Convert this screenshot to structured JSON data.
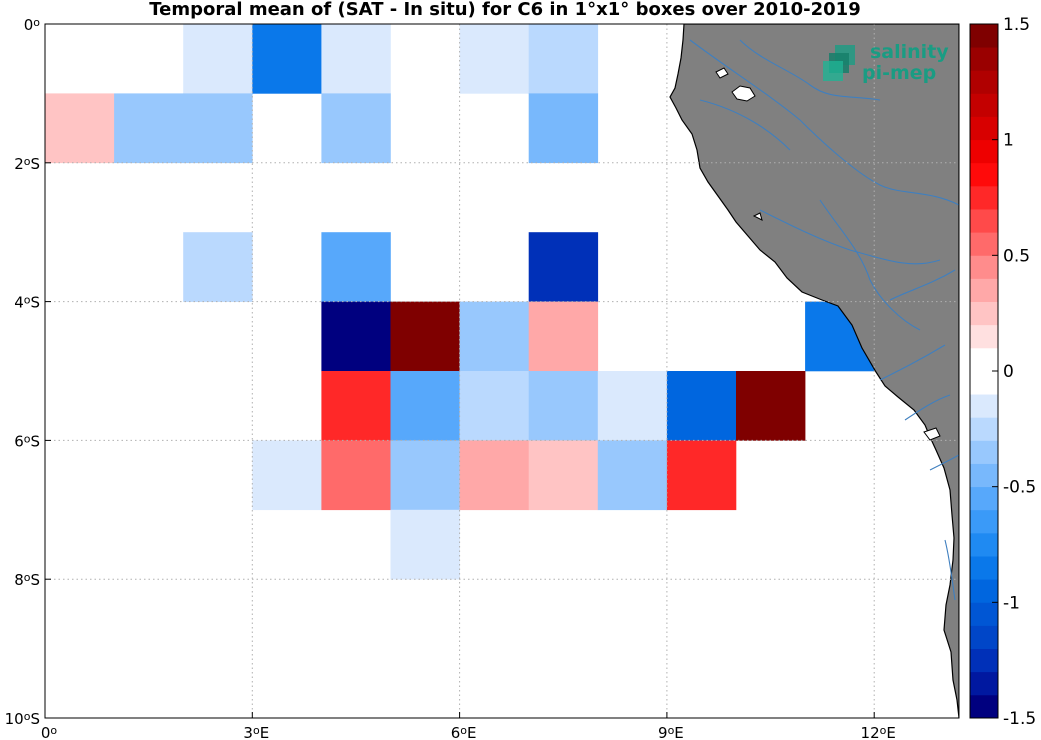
{
  "title": "Temporal mean of (SAT - In situ) for C6 in 1°x1° boxes over 2010-2019",
  "logo": {
    "line1": "salinity",
    "line2": "pi-mep",
    "icon": "stacked-squares-logo-icon"
  },
  "axes": {
    "x_ticks": [
      {
        "value": 0,
        "deg": "0",
        "hem": ""
      },
      {
        "value": 3,
        "deg": "3",
        "hem": "E"
      },
      {
        "value": 6,
        "deg": "6",
        "hem": "E"
      },
      {
        "value": 9,
        "deg": "9",
        "hem": "E"
      },
      {
        "value": 12,
        "deg": "12",
        "hem": "E"
      }
    ],
    "y_ticks": [
      {
        "value": 0,
        "deg": "0",
        "hem": ""
      },
      {
        "value": -2,
        "deg": "2",
        "hem": "S"
      },
      {
        "value": -4,
        "deg": "4",
        "hem": "S"
      },
      {
        "value": -6,
        "deg": "6",
        "hem": "S"
      },
      {
        "value": -8,
        "deg": "8",
        "hem": "S"
      },
      {
        "value": -10,
        "deg": "10",
        "hem": "S"
      }
    ],
    "xlim": [
      0,
      13.2
    ],
    "ylim": [
      -10,
      0.4
    ],
    "grid": "dotted"
  },
  "colorbar": {
    "range": [
      -1.5,
      1.5
    ],
    "ticks": [
      {
        "value": 1.5,
        "label": "1.5"
      },
      {
        "value": 1,
        "label": "1"
      },
      {
        "value": 0.5,
        "label": "0.5"
      },
      {
        "value": 0,
        "label": "0"
      },
      {
        "value": -0.5,
        "label": "-0.5"
      },
      {
        "value": -1,
        "label": "-1"
      },
      {
        "value": -1.5,
        "label": "-1.5"
      }
    ],
    "levels_bottom_to_top": [
      "#00007f",
      "#0018a0",
      "#0030b8",
      "#0046c8",
      "#0056d4",
      "#0066df",
      "#0a78ea",
      "#1f8af2",
      "#3a9af8",
      "#57a8fb",
      "#78b8fc",
      "#98c8fd",
      "#bad9fe",
      "#dae9fd",
      "#ffffff",
      "#ffffff",
      "#ffe0e0",
      "#ffc4c4",
      "#ffa8a8",
      "#ff8c8c",
      "#ff6a6a",
      "#ff4a4a",
      "#ff2828",
      "#ff0a0a",
      "#ee0000",
      "#d80000",
      "#c40000",
      "#b00000",
      "#9a0000",
      "#7f0000"
    ]
  },
  "land_color": "#808080",
  "chart_data": {
    "type": "heatmap",
    "title": "Temporal mean of (SAT - In situ) for C6 in 1°x1° boxes over 2010-2019",
    "xlabel": "",
    "ylabel": "",
    "units": "",
    "cells": [
      {
        "lon": 2.5,
        "lat": -0.5,
        "value": -0.15
      },
      {
        "lon": 3.5,
        "lat": -0.5,
        "value": -0.85
      },
      {
        "lon": 4.5,
        "lat": -0.5,
        "value": -0.15
      },
      {
        "lon": 6.5,
        "lat": -0.5,
        "value": -0.15
      },
      {
        "lon": 7.5,
        "lat": -0.5,
        "value": -0.25
      },
      {
        "lon": 0.5,
        "lat": -1.5,
        "value": 0.25
      },
      {
        "lon": 1.5,
        "lat": -1.5,
        "value": -0.35
      },
      {
        "lon": 2.5,
        "lat": -1.5,
        "value": -0.35
      },
      {
        "lon": 4.5,
        "lat": -1.5,
        "value": -0.35
      },
      {
        "lon": 7.5,
        "lat": -1.5,
        "value": -0.45
      },
      {
        "lon": 2.5,
        "lat": -3.5,
        "value": -0.25
      },
      {
        "lon": 4.5,
        "lat": -3.5,
        "value": -0.6
      },
      {
        "lon": 7.5,
        "lat": -3.5,
        "value": -1.25
      },
      {
        "lon": 4.5,
        "lat": -4.5,
        "value": -1.5
      },
      {
        "lon": 5.5,
        "lat": -4.5,
        "value": 1.5
      },
      {
        "lon": 6.5,
        "lat": -4.5,
        "value": -0.35
      },
      {
        "lon": 7.5,
        "lat": -4.5,
        "value": 0.35
      },
      {
        "lon": 11.5,
        "lat": -4.5,
        "value": -0.85
      },
      {
        "lon": 4.5,
        "lat": -5.5,
        "value": 0.75
      },
      {
        "lon": 5.5,
        "lat": -5.5,
        "value": -0.55
      },
      {
        "lon": 6.5,
        "lat": -5.5,
        "value": -0.25
      },
      {
        "lon": 7.5,
        "lat": -5.5,
        "value": -0.35
      },
      {
        "lon": 8.5,
        "lat": -5.5,
        "value": -0.15
      },
      {
        "lon": 9.5,
        "lat": -5.5,
        "value": -0.95
      },
      {
        "lon": 10.5,
        "lat": -5.5,
        "value": 1.5
      },
      {
        "lon": 3.5,
        "lat": -6.5,
        "value": -0.15
      },
      {
        "lon": 4.5,
        "lat": -6.5,
        "value": 0.55
      },
      {
        "lon": 5.5,
        "lat": -6.5,
        "value": -0.35
      },
      {
        "lon": 6.5,
        "lat": -6.5,
        "value": 0.35
      },
      {
        "lon": 7.5,
        "lat": -6.5,
        "value": 0.25
      },
      {
        "lon": 8.5,
        "lat": -6.5,
        "value": -0.35
      },
      {
        "lon": 9.5,
        "lat": -6.5,
        "value": 0.75
      },
      {
        "lon": 5.5,
        "lat": -7.5,
        "value": -0.15
      }
    ]
  }
}
